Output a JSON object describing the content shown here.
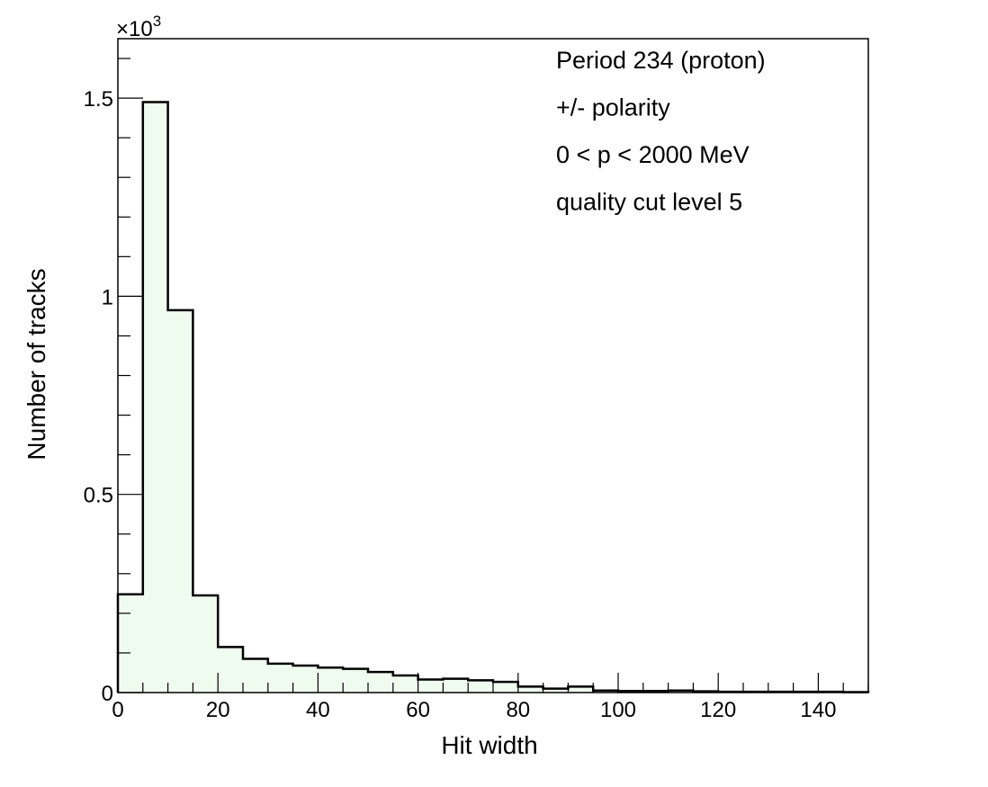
{
  "chart_data": {
    "type": "histogram",
    "xlabel": "Hit width",
    "ylabel": "Number of tracks",
    "y_multiplier_label": "×10",
    "y_multiplier_exp": "3",
    "xlim": [
      0,
      150
    ],
    "ylim": [
      0,
      1.65
    ],
    "y_unit_scale": 1000,
    "bin_width": 5,
    "x_ticks": [
      0,
      20,
      40,
      60,
      80,
      100,
      120,
      140
    ],
    "x_tick_labels": [
      "0",
      "20",
      "40",
      "60",
      "80",
      "100",
      "120",
      "140"
    ],
    "y_ticks": [
      0,
      0.5,
      1,
      1.5
    ],
    "y_tick_labels": [
      "0",
      "0.5",
      "1",
      "1.5"
    ],
    "grid": false,
    "bin_edges": [
      0,
      5,
      10,
      15,
      20,
      25,
      30,
      35,
      40,
      45,
      50,
      55,
      60,
      65,
      70,
      75,
      80,
      85,
      90,
      95,
      100,
      105,
      110,
      115,
      120,
      125,
      130,
      135,
      140,
      145,
      150
    ],
    "values": [
      0.248,
      1.49,
      0.965,
      0.245,
      0.115,
      0.085,
      0.073,
      0.068,
      0.063,
      0.06,
      0.052,
      0.043,
      0.033,
      0.035,
      0.031,
      0.027,
      0.015,
      0.01,
      0.015,
      0.005,
      0.004,
      0.004,
      0.005,
      0.003,
      0.002,
      0.002,
      0.002,
      0.002,
      0.002,
      0.001
    ],
    "fill_color": "#f0fbf0",
    "line_color": "#000000",
    "annotations": [
      "Period 234 (proton)",
      "+/- polarity",
      "0 < p < 2000 MeV",
      "quality cut level 5"
    ]
  }
}
